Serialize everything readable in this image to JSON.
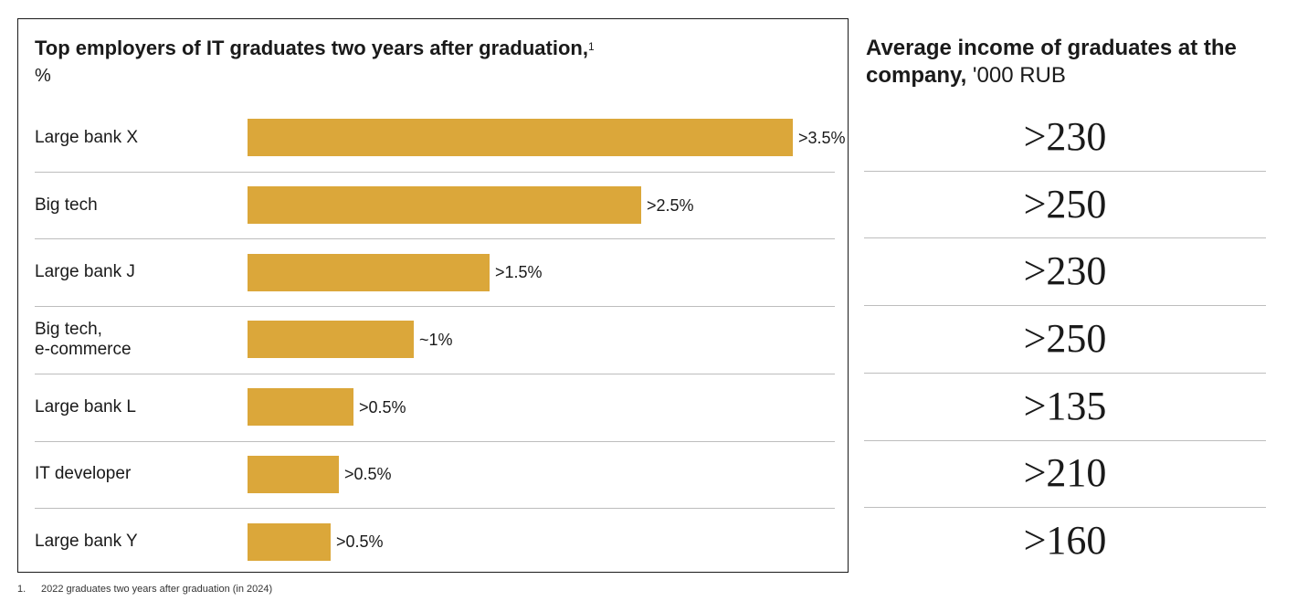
{
  "chart_data": {
    "type": "bar",
    "orientation": "horizontal",
    "title": "Top employers of IT graduates two years after graduation,",
    "title_footnote_marker": "1",
    "unit": "%",
    "categories": [
      "Large bank X",
      "Big tech",
      "Large bank J",
      "Big tech,\ne-commerce",
      "Large bank L",
      "IT developer",
      "Large bank Y"
    ],
    "values": [
      3.6,
      2.6,
      1.6,
      1.1,
      0.7,
      0.6,
      0.55
    ],
    "value_labels": [
      ">3.5%",
      ">2.5%",
      ">1.5%",
      "~1%",
      ">0.5%",
      ">0.5%",
      ">0.5%"
    ],
    "xlim": [
      0,
      3.75
    ],
    "bar_color": "#dba73a",
    "grid": false
  },
  "income_panel": {
    "title_bold": "Average income of graduates at the company,",
    "title_unit": "'000 RUB",
    "values": [
      ">230",
      ">250",
      ">230",
      ">250",
      ">135",
      ">210",
      ">160"
    ]
  },
  "footnote": {
    "number": "1.",
    "text": "2022 graduates two years after graduation (in 2024)"
  }
}
